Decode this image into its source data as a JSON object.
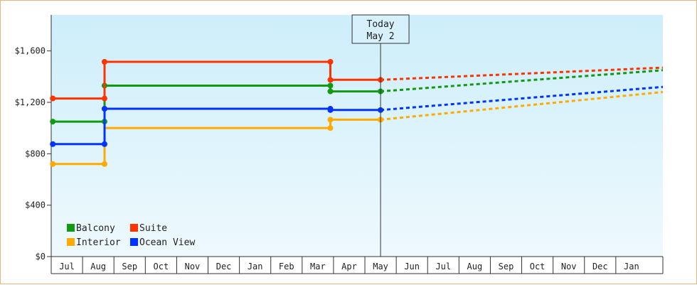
{
  "chart_data": {
    "type": "line",
    "step": true,
    "y_tick_labels": [
      "$0",
      "$400",
      "$800",
      "$1,200",
      "$1,600"
    ],
    "y_ticks": [
      0,
      400,
      800,
      1200,
      1600
    ],
    "ylim": [
      0,
      1880
    ],
    "x_months": [
      "Jul",
      "Aug",
      "Sep",
      "Oct",
      "Nov",
      "Dec",
      "Jan",
      "Feb",
      "Mar",
      "Apr",
      "May",
      "Jun",
      "Jul",
      "Aug",
      "Sep",
      "Oct",
      "Nov",
      "Dec",
      "Jan"
    ],
    "xlim": [
      -0.45,
      19.0
    ],
    "today": {
      "line1": "Today",
      "line2": "May 2",
      "x": 10.0
    },
    "grid": false,
    "legend_position": "bottom-left",
    "series": [
      {
        "name": "Balcony",
        "color": "#119911",
        "steps": [
          [
            -0.45,
            1050
          ],
          [
            1.2,
            1050
          ],
          [
            1.2,
            1330
          ],
          [
            8.4,
            1330
          ],
          [
            8.4,
            1285
          ],
          [
            10.0,
            1285
          ]
        ],
        "markers": [
          [
            -0.45,
            1050
          ],
          [
            1.2,
            1050
          ],
          [
            1.2,
            1150
          ],
          [
            1.2,
            1330
          ],
          [
            8.4,
            1330
          ],
          [
            8.4,
            1285
          ],
          [
            10.0,
            1285
          ]
        ],
        "forecast": [
          [
            10.0,
            1285
          ],
          [
            19.0,
            1450
          ]
        ]
      },
      {
        "name": "Suite",
        "color": "#ff3300",
        "steps": [
          [
            -0.45,
            1230
          ],
          [
            1.2,
            1230
          ],
          [
            1.2,
            1515
          ],
          [
            8.4,
            1515
          ],
          [
            8.4,
            1375
          ],
          [
            10.0,
            1375
          ]
        ],
        "markers": [
          [
            -0.45,
            1230
          ],
          [
            1.2,
            1230
          ],
          [
            1.2,
            1515
          ],
          [
            8.4,
            1515
          ],
          [
            8.4,
            1375
          ],
          [
            10.0,
            1375
          ]
        ],
        "forecast": [
          [
            10.0,
            1375
          ],
          [
            19.0,
            1470
          ]
        ]
      },
      {
        "name": "Interior",
        "color": "#ffaa00",
        "steps": [
          [
            -0.45,
            720
          ],
          [
            1.2,
            720
          ],
          [
            1.2,
            1000
          ],
          [
            8.4,
            1000
          ],
          [
            8.4,
            1065
          ],
          [
            10.0,
            1065
          ]
        ],
        "markers": [
          [
            -0.45,
            720
          ],
          [
            1.2,
            720
          ],
          [
            8.4,
            1000
          ],
          [
            8.4,
            1065
          ],
          [
            10.0,
            1065
          ]
        ],
        "forecast": [
          [
            10.0,
            1065
          ],
          [
            19.0,
            1280
          ]
        ]
      },
      {
        "name": "Ocean View",
        "color": "#0033ff",
        "steps": [
          [
            -0.45,
            875
          ],
          [
            1.2,
            875
          ],
          [
            1.2,
            1150
          ],
          [
            8.4,
            1150
          ],
          [
            8.4,
            1140
          ],
          [
            10.0,
            1140
          ]
        ],
        "markers": [
          [
            -0.45,
            875
          ],
          [
            1.2,
            875
          ],
          [
            1.2,
            1150
          ],
          [
            8.4,
            1150
          ],
          [
            8.4,
            1140
          ],
          [
            10.0,
            1140
          ]
        ],
        "forecast": [
          [
            10.0,
            1140
          ],
          [
            19.0,
            1320
          ]
        ]
      }
    ]
  }
}
